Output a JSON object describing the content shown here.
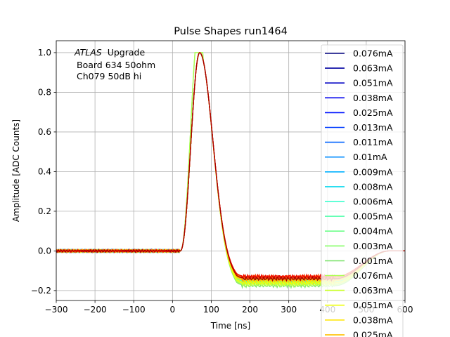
{
  "chart_data": {
    "type": "line",
    "title": "Pulse Shapes run1464",
    "xlabel": "Time [ns]",
    "ylabel": "Amplitude [ADC Counts]",
    "xlim": [
      -300,
      600
    ],
    "ylim": [
      -0.25,
      1.06
    ],
    "xticks": [
      -300,
      -200,
      -100,
      0,
      100,
      200,
      300,
      400,
      500,
      600
    ],
    "yticks": [
      -0.2,
      0.0,
      0.2,
      0.4,
      0.6,
      0.8,
      1.0
    ],
    "xtick_labels": [
      "−300",
      "−200",
      "−100",
      "0",
      "100",
      "200",
      "300",
      "400",
      "500",
      "600"
    ],
    "ytick_labels": [
      "−0.2",
      "0.0",
      "0.2",
      "0.4",
      "0.6",
      "0.8",
      "1.0"
    ],
    "grid": true,
    "legend_position": "right, overflowing below axes",
    "annotation": {
      "atlas": "ATLAS",
      "line1": "Upgrade",
      "line2": "Board 634 50ohm",
      "line3": "Ch079 50dB hi"
    },
    "pulse_model": {
      "baseline": 0.0,
      "rise_start_ns": 20,
      "peak_ns": 70,
      "undershoot_time_ns": 180,
      "recovery_start_ns": 420,
      "recovery_end_ns": 560
    },
    "series": [
      {
        "name": "0.076mA",
        "color": "#00007f",
        "undershoot": -0.14,
        "saturated": false
      },
      {
        "name": "0.063mA",
        "color": "#0000a0",
        "undershoot": -0.14,
        "saturated": false
      },
      {
        "name": "0.051mA",
        "color": "#0000c4",
        "undershoot": -0.14,
        "saturated": false
      },
      {
        "name": "0.038mA",
        "color": "#0000ed",
        "undershoot": -0.14,
        "saturated": false
      },
      {
        "name": "0.025mA",
        "color": "#0014ff",
        "undershoot": -0.14,
        "saturated": false
      },
      {
        "name": "0.013mA",
        "color": "#003cff",
        "undershoot": -0.145,
        "saturated": false
      },
      {
        "name": "0.011mA",
        "color": "#0064ff",
        "undershoot": -0.145,
        "saturated": false
      },
      {
        "name": "0.01mA",
        "color": "#008cff",
        "undershoot": -0.145,
        "saturated": false
      },
      {
        "name": "0.009mA",
        "color": "#00b0ff",
        "undershoot": -0.15,
        "saturated": false
      },
      {
        "name": "0.008mA",
        "color": "#08d8ee",
        "undershoot": -0.15,
        "saturated": false
      },
      {
        "name": "0.006mA",
        "color": "#2cffca",
        "undershoot": -0.15,
        "saturated": false
      },
      {
        "name": "0.005mA",
        "color": "#4dffaa",
        "undershoot": -0.155,
        "saturated": false
      },
      {
        "name": "0.004mA",
        "color": "#6dff8a",
        "undershoot": -0.155,
        "saturated": false
      },
      {
        "name": "0.003mA",
        "color": "#8aff6d",
        "undershoot": -0.16,
        "saturated": false
      },
      {
        "name": "0.001mA",
        "color": "#7ce36c",
        "undershoot": -0.175,
        "saturated": true
      },
      {
        "name": "0.076mA",
        "color": "#aaff4d",
        "undershoot": -0.17,
        "saturated": true
      },
      {
        "name": "0.063mA",
        "color": "#caff2c",
        "undershoot": -0.165,
        "saturated": false
      },
      {
        "name": "0.051mA",
        "color": "#eeff08",
        "undershoot": -0.16,
        "saturated": false
      },
      {
        "name": "0.038mA",
        "color": "#ffe500",
        "undershoot": -0.15,
        "saturated": false
      },
      {
        "name": "0.025mA",
        "color": "#ffc000",
        "undershoot": -0.145,
        "saturated": false
      },
      {
        "name": "",
        "color": "#ff9400",
        "undershoot": -0.14,
        "saturated": false
      },
      {
        "name": "",
        "color": "#ff6800",
        "undershoot": -0.135,
        "saturated": false
      },
      {
        "name": "",
        "color": "#ff4000",
        "undershoot": -0.13,
        "saturated": false
      },
      {
        "name": "",
        "color": "#ed0400",
        "undershoot": -0.13,
        "saturated": false
      },
      {
        "name": "",
        "color": "#a40000",
        "undershoot": -0.14,
        "saturated": false
      }
    ]
  }
}
